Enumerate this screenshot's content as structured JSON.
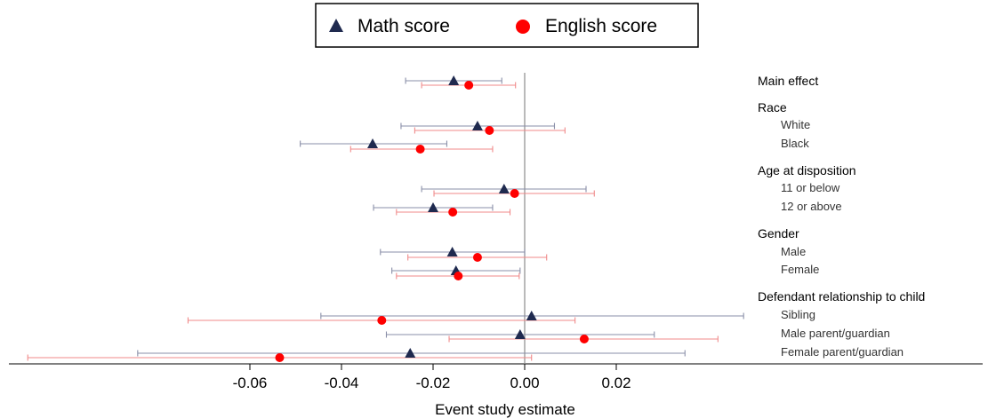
{
  "chart_data": {
    "type": "coefficient-plot",
    "xlabel": "Event study estimate",
    "xticks": [
      -0.06,
      -0.04,
      -0.02,
      0.0,
      0.02
    ],
    "xtick_labels": [
      "-0.06",
      "-0.04",
      "-0.02",
      "0.00",
      "0.02"
    ],
    "xlim": [
      -0.1085,
      0.0635
    ],
    "reference_line": 0,
    "legend_position": "top-center",
    "series": [
      {
        "name": "Math score",
        "marker": "triangle",
        "color": "#1f2a4f",
        "ci_color": "#8a8fa8"
      },
      {
        "name": "English score",
        "marker": "circle",
        "color": "#ff0000",
        "ci_color": "#f08a8a"
      }
    ],
    "labels": [
      {
        "text": "Main effect",
        "kind": "group"
      },
      {
        "text": "Race",
        "kind": "group"
      },
      {
        "text": "White",
        "kind": "sub"
      },
      {
        "text": "Black",
        "kind": "sub"
      },
      {
        "text": "Age at disposition",
        "kind": "group"
      },
      {
        "text": "11 or below",
        "kind": "sub"
      },
      {
        "text": "12 or above",
        "kind": "sub"
      },
      {
        "text": "Gender",
        "kind": "group"
      },
      {
        "text": "Male",
        "kind": "sub"
      },
      {
        "text": "Female",
        "kind": "sub"
      },
      {
        "text": "Defendant relationship to child",
        "kind": "group"
      },
      {
        "text": "Sibling",
        "kind": "sub"
      },
      {
        "text": "Male parent/guardian",
        "kind": "sub"
      },
      {
        "text": "Female parent/guardian",
        "kind": "sub"
      }
    ],
    "rows": [
      {
        "label": "Main effect",
        "math": {
          "est": -0.0155,
          "lo": -0.026,
          "hi": -0.005
        },
        "english": {
          "est": -0.0122,
          "lo": -0.0225,
          "hi": -0.002
        }
      },
      {
        "label": "White",
        "math": {
          "est": -0.0103,
          "lo": -0.027,
          "hi": 0.0065
        },
        "english": {
          "est": -0.0077,
          "lo": -0.024,
          "hi": 0.0088
        }
      },
      {
        "label": "Black",
        "math": {
          "est": -0.0332,
          "lo": -0.049,
          "hi": -0.017
        },
        "english": {
          "est": -0.0228,
          "lo": -0.038,
          "hi": -0.007
        }
      },
      {
        "label": "11 or below",
        "math": {
          "est": -0.0045,
          "lo": -0.0225,
          "hi": 0.0134
        },
        "english": {
          "est": -0.0022,
          "lo": -0.0198,
          "hi": 0.0152
        }
      },
      {
        "label": "12 or above",
        "math": {
          "est": -0.02,
          "lo": -0.033,
          "hi": -0.007
        },
        "english": {
          "est": -0.0157,
          "lo": -0.028,
          "hi": -0.0032
        }
      },
      {
        "label": "Male",
        "math": {
          "est": -0.0158,
          "lo": -0.0315,
          "hi": 0.0
        },
        "english": {
          "est": -0.0103,
          "lo": -0.0255,
          "hi": 0.0048
        }
      },
      {
        "label": "Female",
        "math": {
          "est": -0.015,
          "lo": -0.029,
          "hi": -0.001
        },
        "english": {
          "est": -0.0145,
          "lo": -0.028,
          "hi": -0.0012
        }
      },
      {
        "label": "Sibling",
        "math": {
          "est": 0.0015,
          "lo": -0.0445,
          "hi": 0.0478
        },
        "english": {
          "est": -0.0312,
          "lo": -0.0735,
          "hi": 0.011
        }
      },
      {
        "label": "Male parent/guardian",
        "math": {
          "est": -0.001,
          "lo": -0.0302,
          "hi": 0.0283
        },
        "english": {
          "est": 0.013,
          "lo": -0.0165,
          "hi": 0.0422
        }
      },
      {
        "label": "Female parent/guardian",
        "math": {
          "est": -0.025,
          "lo": -0.0845,
          "hi": 0.035
        },
        "english": {
          "est": -0.0535,
          "lo": -0.1085,
          "hi": 0.0015
        }
      }
    ]
  }
}
